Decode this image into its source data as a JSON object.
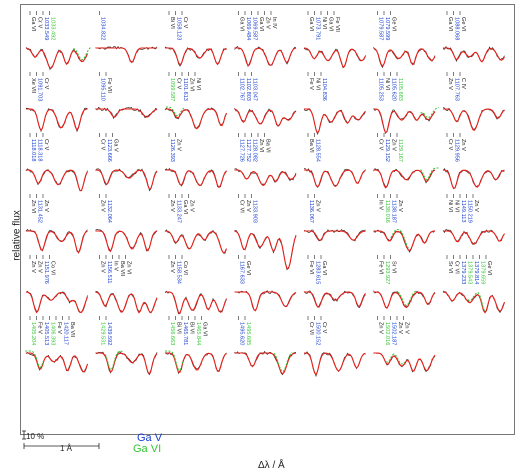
{
  "axes": {
    "ylabel": "relative flux",
    "xlabel": "Δλ / Å"
  },
  "scale": {
    "flux_label": "10 %",
    "wave_label": "1 Å"
  },
  "legend": [
    {
      "label": "Ga V",
      "color": "#1a3fd1"
    },
    {
      "label": "Ga VI",
      "color": "#34c634"
    }
  ],
  "colors": {
    "observed": "#333333",
    "model": "#e8201a",
    "model_alt": "#34c634",
    "ga5": "#1a3fd1",
    "ga6": "#34c634",
    "other": "#222222"
  },
  "chart_data": {
    "type": "line",
    "title": "",
    "xlabel": "Δλ / Å",
    "ylabel": "relative flux",
    "grid": false,
    "rows": 7,
    "cols": 7,
    "panels": [
      {
        "lines": [
          {
            "t": "Ga VI",
            "c": "o"
          },
          {
            "t": "Cr V",
            "c": "o"
          },
          {
            "t": "1033.549",
            "c": "g5"
          },
          {
            "t": "1033.492",
            "c": "g6"
          }
        ]
      },
      {
        "lines": [
          {
            "t": "1034.822",
            "c": "g5"
          }
        ]
      },
      {
        "lines": [
          {
            "t": "Bi VI",
            "c": "o"
          },
          {
            "t": "1058.123",
            "c": "g5"
          },
          {
            "t": "Cr V",
            "c": "o"
          }
        ]
      },
      {
        "lines": [
          {
            "t": "Ga VI",
            "c": "o"
          },
          {
            "t": "1069.484",
            "c": "g5"
          },
          {
            "t": "1069.587",
            "c": "g5"
          },
          {
            "t": "Ga VI",
            "c": "o"
          },
          {
            "t": "Zn V",
            "c": "o"
          },
          {
            "t": "In IV",
            "c": "o"
          }
        ]
      },
      {
        "lines": [
          {
            "t": "Ga VI",
            "c": "o"
          },
          {
            "t": "1073.791",
            "c": "g5"
          },
          {
            "t": "Ni VI",
            "c": "o"
          },
          {
            "t": "Ga VI",
            "c": "o"
          },
          {
            "t": "Fe VII",
            "c": "o"
          }
        ]
      },
      {
        "lines": [
          {
            "t": "1079.587",
            "c": "g5"
          },
          {
            "t": "1079.599",
            "c": "g5"
          },
          {
            "t": "Ge VI",
            "c": "o"
          }
        ]
      },
      {
        "lines": [
          {
            "t": "Ga VI",
            "c": "o"
          },
          {
            "t": "1088.068",
            "c": "g5"
          },
          {
            "t": "Ge VI",
            "c": "o"
          }
        ]
      },
      {
        "lines": [
          {
            "t": "Xe VII",
            "c": "o"
          },
          {
            "t": "1091.703",
            "c": "g5"
          },
          {
            "t": "Cr V",
            "c": "o"
          }
        ]
      },
      {
        "lines": [
          {
            "t": "1095.110",
            "c": "g5"
          },
          {
            "t": "Fe VII",
            "c": "o"
          }
        ]
      },
      {
        "lines": [
          {
            "t": "1099.587",
            "c": "g6"
          },
          {
            "t": "Cr V",
            "c": "o"
          },
          {
            "t": "1101.613",
            "c": "g5"
          },
          {
            "t": "Zn VI",
            "c": "o"
          },
          {
            "t": "Ni VI",
            "c": "o"
          }
        ]
      },
      {
        "lines": [
          {
            "t": "1102.767",
            "c": "g5"
          },
          {
            "t": "1102.803",
            "c": "g5"
          },
          {
            "t": "1103.047",
            "c": "g5"
          }
        ]
      },
      {
        "lines": [
          {
            "t": "Fe V",
            "c": "o"
          },
          {
            "t": "Ni VI",
            "c": "o"
          },
          {
            "t": "1104.836",
            "c": "g5"
          }
        ]
      },
      {
        "lines": [
          {
            "t": "1105.253",
            "c": "g5"
          },
          {
            "t": "Ni VI",
            "c": "o"
          },
          {
            "t": "1105.620",
            "c": "g5"
          },
          {
            "t": "1105.683",
            "c": "g6"
          }
        ]
      },
      {
        "lines": [
          {
            "t": "Zn V",
            "c": "o"
          },
          {
            "t": "1107.763",
            "c": "g5"
          },
          {
            "t": "C IV",
            "c": "o"
          }
        ]
      },
      {
        "lines": [
          {
            "t": "1118.018",
            "c": "g5"
          },
          {
            "t": "1118.318",
            "c": "g5"
          },
          {
            "t": "Cr V",
            "c": "o"
          }
        ]
      },
      {
        "lines": [
          {
            "t": "Cr V",
            "c": "o"
          },
          {
            "t": "1123.666",
            "c": "g5"
          },
          {
            "t": "Ga V",
            "c": "o"
          }
        ]
      },
      {
        "lines": [
          {
            "t": "1126.393",
            "c": "g5"
          },
          {
            "t": "Zn V",
            "c": "o"
          }
        ]
      },
      {
        "lines": [
          {
            "t": "1127.726",
            "c": "g5"
          },
          {
            "t": "1127.752",
            "c": "g5"
          },
          {
            "t": "1128.082",
            "c": "g5"
          },
          {
            "t": "Zn VI",
            "c": "o"
          },
          {
            "t": "Ba VI",
            "c": "o"
          }
        ]
      },
      {
        "lines": [
          {
            "t": "Ba VI",
            "c": "o"
          },
          {
            "t": "1128.554",
            "c": "g5"
          }
        ]
      },
      {
        "lines": [
          {
            "t": "Cr V",
            "c": "o"
          },
          {
            "t": "1129.152",
            "c": "g5"
          },
          {
            "t": "Zn V",
            "c": "o"
          },
          {
            "t": "1129.167",
            "c": "g6"
          }
        ]
      },
      {
        "lines": [
          {
            "t": "Cr V",
            "c": "o"
          },
          {
            "t": "1129.956",
            "c": "g5"
          },
          {
            "t": "Zn V",
            "c": "o"
          }
        ]
      },
      {
        "lines": [
          {
            "t": "Zn VI",
            "c": "o"
          },
          {
            "t": "1131.452",
            "c": "g5"
          },
          {
            "t": "Zn V",
            "c": "o"
          }
        ]
      },
      {
        "lines": [
          {
            "t": "Zn V",
            "c": "o"
          },
          {
            "t": "1132.064",
            "c": "g5"
          }
        ]
      },
      {
        "lines": [
          {
            "t": "Zn V",
            "c": "o"
          },
          {
            "t": "1133.247",
            "c": "g5"
          },
          {
            "t": "Ga VI",
            "c": "o"
          },
          {
            "t": "Zn V",
            "c": "o"
          }
        ]
      },
      {
        "lines": [
          {
            "t": "Cr VI",
            "c": "o"
          },
          {
            "t": "Zn V",
            "c": "o"
          },
          {
            "t": "1133.903",
            "c": "g5"
          }
        ]
      },
      {
        "lines": [
          {
            "t": "1136.067",
            "c": "g5"
          },
          {
            "t": "Zn V",
            "c": "o"
          }
        ]
      },
      {
        "lines": [
          {
            "t": "In V",
            "c": "o"
          },
          {
            "t": "1138.016",
            "c": "g6"
          },
          {
            "t": "1138.187",
            "c": "g5"
          },
          {
            "t": "Zn V",
            "c": "o"
          }
        ]
      },
      {
        "lines": [
          {
            "t": "Ni VI",
            "c": "o"
          },
          {
            "t": "Ni VI",
            "c": "o"
          },
          {
            "t": "1149.113",
            "c": "g5"
          },
          {
            "t": "1150.219",
            "c": "g5"
          },
          {
            "t": "Zn V",
            "c": "o"
          }
        ]
      },
      {
        "lines": [
          {
            "t": "Zn V",
            "c": "o"
          },
          {
            "t": "Zn V",
            "c": "o"
          },
          {
            "t": "1151.976",
            "c": "g5"
          },
          {
            "t": "Co VI",
            "c": "o"
          }
        ]
      },
      {
        "lines": [
          {
            "t": "Zn V",
            "c": "o"
          },
          {
            "t": "1156.511",
            "c": "g5"
          },
          {
            "t": "In V",
            "c": "o"
          },
          {
            "t": "Ba VII",
            "c": "o"
          },
          {
            "t": "Zn VI",
            "c": "o"
          }
        ]
      },
      {
        "lines": [
          {
            "t": "Zn V",
            "c": "o"
          },
          {
            "t": "1158.534",
            "c": "g5"
          },
          {
            "t": "Co VI",
            "c": "o"
          }
        ]
      },
      {
        "lines": [
          {
            "t": "1167.633",
            "c": "g5"
          },
          {
            "t": "Ge VI",
            "c": "o"
          }
        ]
      },
      {
        "lines": [
          {
            "t": "Fe VI",
            "c": "o"
          },
          {
            "t": "1283.615",
            "c": "g5"
          },
          {
            "t": "Ga VI",
            "c": "o"
          }
        ]
      },
      {
        "lines": [
          {
            "t": "Fe VI",
            "c": "o"
          },
          {
            "t": "1293.927",
            "c": "g6"
          },
          {
            "t": "Sr VI",
            "c": "o"
          }
        ]
      },
      {
        "lines": [
          {
            "t": "Sr VI",
            "c": "o"
          },
          {
            "t": "Cr VI",
            "c": "o"
          },
          {
            "t": "1379.233",
            "c": "g5"
          },
          {
            "t": "1379.543",
            "c": "g6"
          },
          {
            "t": "1379.814",
            "c": "g5"
          },
          {
            "t": "1379.659",
            "c": "g6"
          },
          {
            "t": "Ge VI",
            "c": "o"
          }
        ]
      },
      {
        "lines": [
          {
            "t": "1405.204",
            "c": "g6"
          },
          {
            "t": "Fe V",
            "c": "o"
          },
          {
            "t": "1405.513",
            "c": "g5"
          },
          {
            "t": "1406.393",
            "c": "g6"
          },
          {
            "t": "Fe V",
            "c": "o"
          },
          {
            "t": "1420.117",
            "c": "g5"
          },
          {
            "t": "Ba VII",
            "c": "o"
          }
        ]
      },
      {
        "lines": [
          {
            "t": "1429.531",
            "c": "g6"
          },
          {
            "t": "1439.592",
            "c": "g5"
          }
        ]
      },
      {
        "lines": [
          {
            "t": "1456.663",
            "c": "g6"
          },
          {
            "t": "Bi VI",
            "c": "o"
          },
          {
            "t": "1465.781",
            "c": "g5"
          },
          {
            "t": "Bi VI",
            "c": "o"
          },
          {
            "t": "1465.844",
            "c": "g6"
          },
          {
            "t": "Ga VI",
            "c": "o"
          }
        ]
      },
      {
        "lines": [
          {
            "t": "1495.620",
            "c": "g5"
          },
          {
            "t": "1495.685",
            "c": "g6"
          }
        ]
      },
      {
        "lines": [
          {
            "t": "Cr VI",
            "c": "o"
          },
          {
            "t": "1500.152",
            "c": "g5"
          },
          {
            "t": "Cr V",
            "c": "o"
          }
        ]
      },
      {
        "lines": [
          {
            "t": "Zn V",
            "c": "o"
          },
          {
            "t": "1502.016",
            "c": "g6"
          },
          {
            "t": "1502.187",
            "c": "g5"
          },
          {
            "t": "Zn V",
            "c": "o"
          },
          {
            "t": "Zn V",
            "c": "o"
          }
        ]
      },
      {
        "lines": []
      }
    ]
  }
}
